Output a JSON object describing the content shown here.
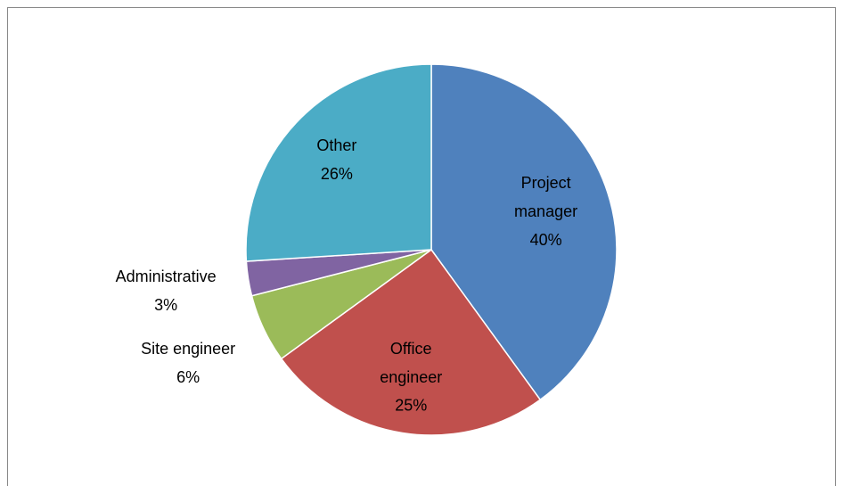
{
  "chart_data": {
    "type": "pie",
    "categories": [
      "Project manager",
      "Office engineer",
      "Site engineer",
      "Administrative",
      "Other"
    ],
    "values": [
      40,
      25,
      6,
      3,
      26
    ],
    "value_labels": [
      "40%",
      "25%",
      "6%",
      "3%",
      "26%"
    ],
    "colors": [
      "#4f81bd",
      "#c0504d",
      "#9bbb59",
      "#8064a2",
      "#4bacc6"
    ]
  }
}
